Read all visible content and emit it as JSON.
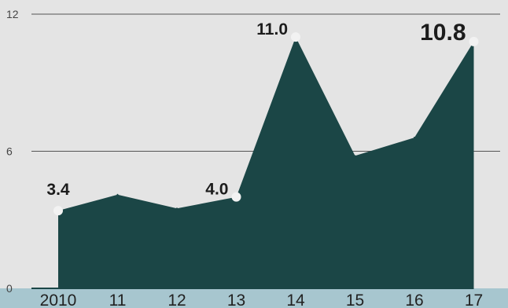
{
  "chart_data": {
    "type": "area",
    "title": "",
    "xlabel": "",
    "ylabel": "",
    "categories": [
      "2010",
      "11",
      "12",
      "13",
      "14",
      "15",
      "16",
      "17"
    ],
    "values": [
      3.4,
      4.1,
      3.5,
      4.0,
      11.0,
      5.8,
      6.6,
      10.8
    ],
    "ylim": [
      0,
      12
    ],
    "yticks": [
      "0",
      "6",
      "12"
    ],
    "grid": true,
    "legend": "none",
    "data_labels": [
      {
        "index": 0,
        "text": "3.4"
      },
      {
        "index": 3,
        "text": "4.0"
      },
      {
        "index": 4,
        "text": "11.0"
      },
      {
        "index": 7,
        "text": "10.8"
      }
    ],
    "colors": {
      "area": "#1b4646",
      "gridline": "#555555",
      "axis_band": "#a7c6cf",
      "marker": "#f2f2f2",
      "background": "#e4e4e4"
    }
  }
}
